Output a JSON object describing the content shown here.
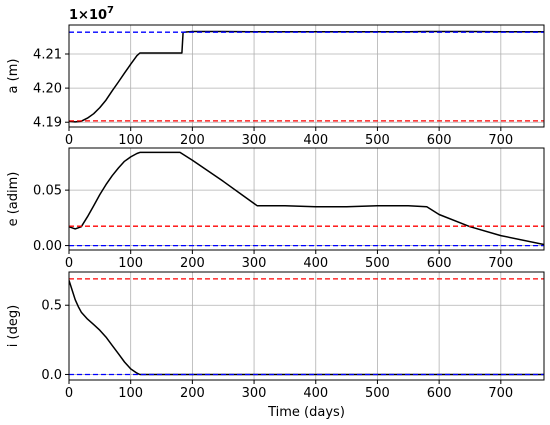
{
  "chart_data": [
    {
      "type": "line",
      "ylabel": "a (m)",
      "offset_label": "1×10",
      "offset_exp": "7",
      "xlim": [
        0,
        770
      ],
      "ylim": [
        4.1886,
        4.2185
      ],
      "xticks": [
        0,
        100,
        200,
        300,
        400,
        500,
        600,
        700
      ],
      "xtick_labels": [
        "0",
        "100",
        "200",
        "300",
        "400",
        "500",
        "600",
        "700"
      ],
      "yticks": [
        4.19,
        4.2,
        4.21
      ],
      "ytick_labels": [
        "4.19",
        "4.20",
        "4.21"
      ],
      "grid": true,
      "series": [
        {
          "color": "#000000",
          "style": "solid",
          "x": [
            0,
            10,
            20,
            30,
            40,
            50,
            60,
            70,
            80,
            90,
            100,
            110,
            115,
            150,
            183,
            185,
            200,
            250,
            300,
            350,
            400,
            450,
            500,
            550,
            580,
            600,
            650,
            700,
            770
          ],
          "y": [
            4.1903,
            4.1901,
            4.1903,
            4.1912,
            4.1925,
            4.1943,
            4.1965,
            4.1992,
            4.2018,
            4.2044,
            4.207,
            4.2095,
            4.2103,
            4.2103,
            4.2103,
            4.2164,
            4.2166,
            4.2166,
            4.2165,
            4.2165,
            4.2165,
            4.2165,
            4.2165,
            4.2165,
            4.2166,
            4.2166,
            4.2166,
            4.2165,
            4.2165
          ]
        },
        {
          "color": "#ff0000",
          "style": "dashed",
          "x": [
            0,
            770
          ],
          "y": [
            4.1904,
            4.1904
          ]
        },
        {
          "color": "#0000ff",
          "style": "dashed",
          "x": [
            0,
            770
          ],
          "y": [
            4.2164,
            4.2164
          ]
        }
      ]
    },
    {
      "type": "line",
      "ylabel": "e (adim)",
      "xlim": [
        0,
        770
      ],
      "ylim": [
        -0.004,
        0.088
      ],
      "xticks": [
        0,
        100,
        200,
        300,
        400,
        500,
        600,
        700
      ],
      "xtick_labels": [
        "0",
        "100",
        "200",
        "300",
        "400",
        "500",
        "600",
        "700"
      ],
      "yticks": [
        0.0,
        0.05
      ],
      "ytick_labels": [
        "0.00",
        "0.05"
      ],
      "grid": true,
      "series": [
        {
          "color": "#000000",
          "style": "solid",
          "x": [
            0,
            10,
            20,
            30,
            40,
            50,
            60,
            70,
            80,
            90,
            100,
            110,
            115,
            150,
            180,
            200,
            250,
            280,
            305,
            350,
            400,
            450,
            500,
            550,
            580,
            600,
            650,
            700,
            770
          ],
          "y": [
            0.017,
            0.015,
            0.017,
            0.026,
            0.036,
            0.046,
            0.055,
            0.063,
            0.07,
            0.076,
            0.08,
            0.083,
            0.084,
            0.084,
            0.084,
            0.077,
            0.058,
            0.046,
            0.036,
            0.036,
            0.035,
            0.035,
            0.036,
            0.036,
            0.035,
            0.028,
            0.017,
            0.009,
            0.001
          ]
        },
        {
          "color": "#ff0000",
          "style": "dashed",
          "x": [
            0,
            770
          ],
          "y": [
            0.0175,
            0.0175
          ]
        },
        {
          "color": "#0000ff",
          "style": "dashed",
          "x": [
            0,
            770
          ],
          "y": [
            0.0,
            0.0
          ]
        }
      ]
    },
    {
      "type": "line",
      "ylabel": "i (deg)",
      "xlabel": "Time (days)",
      "xlim": [
        0,
        770
      ],
      "ylim": [
        -0.04,
        0.74
      ],
      "xticks": [
        0,
        100,
        200,
        300,
        400,
        500,
        600,
        700
      ],
      "xtick_labels": [
        "0",
        "100",
        "200",
        "300",
        "400",
        "500",
        "600",
        "700"
      ],
      "yticks": [
        0.0,
        0.5
      ],
      "ytick_labels": [
        "0.0",
        "0.5"
      ],
      "grid": true,
      "series": [
        {
          "color": "#000000",
          "style": "solid",
          "x": [
            0,
            5,
            10,
            15,
            20,
            30,
            40,
            50,
            60,
            70,
            80,
            90,
            100,
            110,
            115,
            150,
            300,
            500,
            770
          ],
          "y": [
            0.68,
            0.61,
            0.54,
            0.49,
            0.45,
            0.4,
            0.36,
            0.32,
            0.27,
            0.21,
            0.15,
            0.09,
            0.04,
            0.01,
            0.0,
            0.0,
            0.0,
            0.0,
            0.0
          ]
        },
        {
          "color": "#ff0000",
          "style": "dashed",
          "x": [
            0,
            770
          ],
          "y": [
            0.69,
            0.69
          ]
        },
        {
          "color": "#0000ff",
          "style": "dashed",
          "x": [
            0,
            770
          ],
          "y": [
            0.0,
            0.0
          ]
        }
      ]
    }
  ]
}
